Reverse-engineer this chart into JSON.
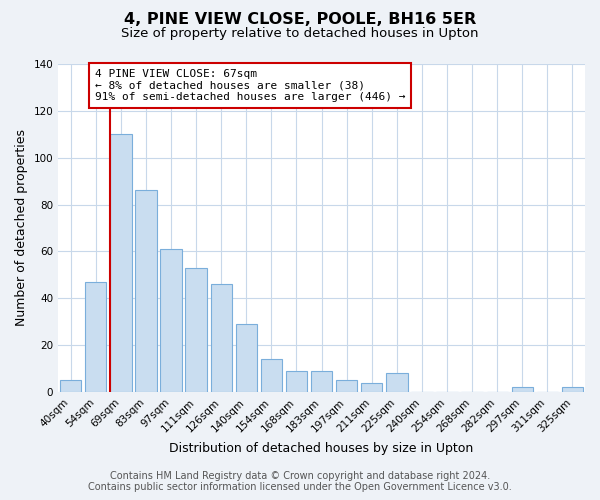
{
  "title": "4, PINE VIEW CLOSE, POOLE, BH16 5ER",
  "subtitle": "Size of property relative to detached houses in Upton",
  "xlabel": "Distribution of detached houses by size in Upton",
  "ylabel": "Number of detached properties",
  "bar_labels": [
    "40sqm",
    "54sqm",
    "69sqm",
    "83sqm",
    "97sqm",
    "111sqm",
    "126sqm",
    "140sqm",
    "154sqm",
    "168sqm",
    "183sqm",
    "197sqm",
    "211sqm",
    "225sqm",
    "240sqm",
    "254sqm",
    "268sqm",
    "282sqm",
    "297sqm",
    "311sqm",
    "325sqm"
  ],
  "bar_values": [
    5,
    47,
    110,
    86,
    61,
    53,
    46,
    29,
    14,
    9,
    9,
    5,
    4,
    8,
    0,
    0,
    0,
    0,
    2,
    0,
    2
  ],
  "bar_color": "#c9ddf0",
  "bar_edge_color": "#7aaedb",
  "ylim": [
    0,
    140
  ],
  "yticks": [
    0,
    20,
    40,
    60,
    80,
    100,
    120,
    140
  ],
  "red_line_index": 2,
  "red_line_color": "#cc0000",
  "annotation_title": "4 PINE VIEW CLOSE: 67sqm",
  "annotation_line1": "← 8% of detached houses are smaller (38)",
  "annotation_line2": "91% of semi-detached houses are larger (446) →",
  "footer1": "Contains HM Land Registry data © Crown copyright and database right 2024.",
  "footer2": "Contains public sector information licensed under the Open Government Licence v3.0.",
  "background_color": "#eef2f7",
  "plot_background": "#ffffff",
  "grid_color": "#c8d8ea",
  "title_fontsize": 11.5,
  "subtitle_fontsize": 9.5,
  "axis_label_fontsize": 9,
  "tick_fontsize": 7.5,
  "footer_fontsize": 7
}
